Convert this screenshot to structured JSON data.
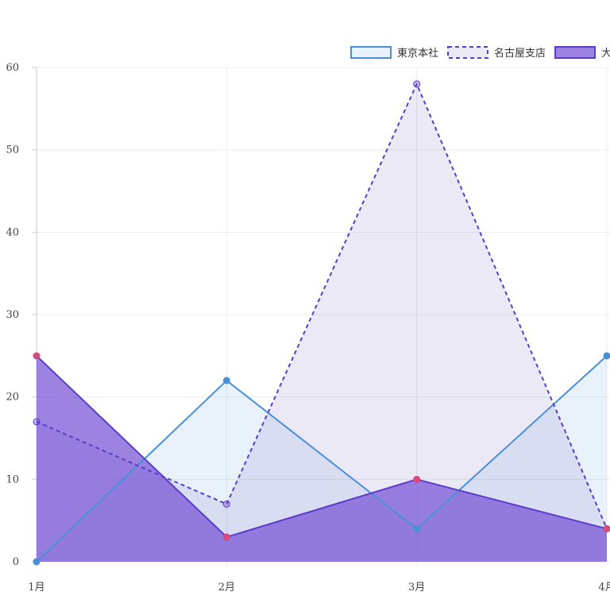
{
  "chart_data": {
    "type": "area",
    "categories": [
      "1月",
      "2月",
      "3月",
      "4月"
    ],
    "ylim": [
      0,
      60
    ],
    "yticks": [
      0,
      10,
      20,
      30,
      40,
      50,
      60
    ],
    "grid": true,
    "legend_position": "top-right",
    "series": [
      {
        "name": "東京本社",
        "values": [
          0,
          22,
          4,
          25
        ],
        "line_color": "#4a90d9",
        "fill_color": "rgba(74,144,217,0.12)",
        "dashed": false,
        "point_color": "#4a90d9"
      },
      {
        "name": "名古屋支店",
        "values": [
          17,
          7,
          58,
          4
        ],
        "line_color": "#5a3cc8",
        "fill_color": "rgba(120,100,200,0.14)",
        "dashed": true,
        "point_color": "#5a3cc8"
      },
      {
        "name": "大",
        "values": [
          25,
          3,
          10,
          4
        ],
        "line_color": "#5a3cc8",
        "fill_color": "rgba(118,82,214,0.72)",
        "dashed": false,
        "point_color": "#d9487e"
      }
    ]
  }
}
